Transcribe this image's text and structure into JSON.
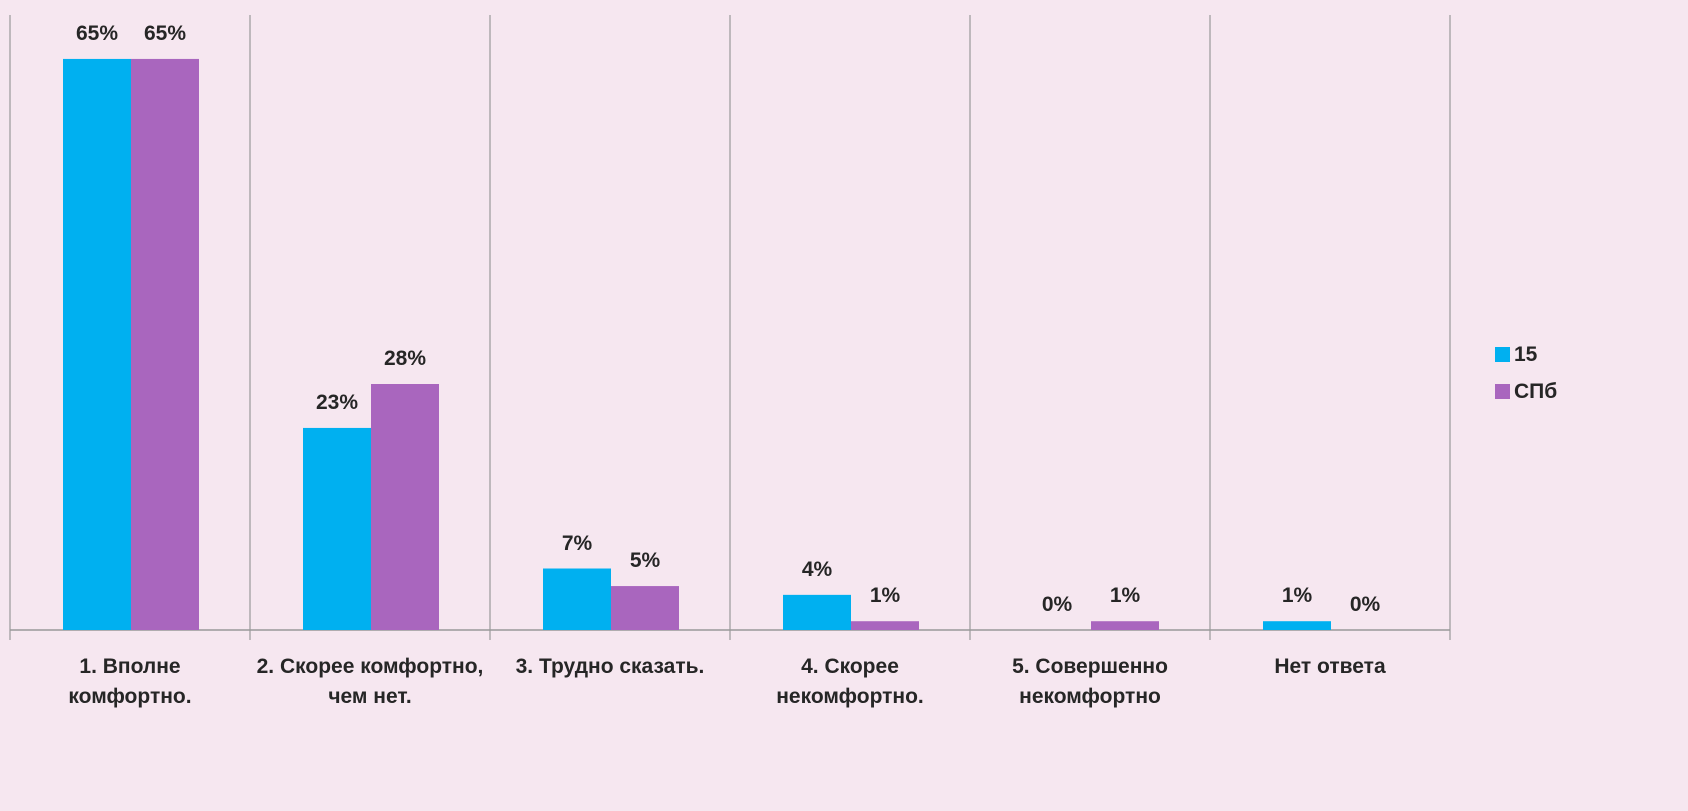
{
  "chart_data": {
    "type": "bar",
    "categories": [
      "1. Вполне комфортно.",
      "2. Скорее комфортно, чем нет.",
      "3. Трудно сказать.",
      "4. Скорее некомфортно.",
      "5. Совершенно некомфортно",
      "Нет ответа"
    ],
    "series": [
      {
        "name": "15",
        "color": "#00b0f0",
        "values": [
          65,
          23,
          7,
          4,
          0,
          1
        ],
        "value_labels": [
          "65%",
          "23%",
          "7%",
          "4%",
          "0%",
          "1%"
        ]
      },
      {
        "name": "СПб",
        "color": "#a966be",
        "values": [
          65,
          28,
          5,
          1,
          1,
          0
        ],
        "value_labels": [
          "65%",
          "28%",
          "5%",
          "1%",
          "1%",
          "0%"
        ]
      }
    ],
    "ylim": [
      0,
      70
    ],
    "legend": "right"
  }
}
